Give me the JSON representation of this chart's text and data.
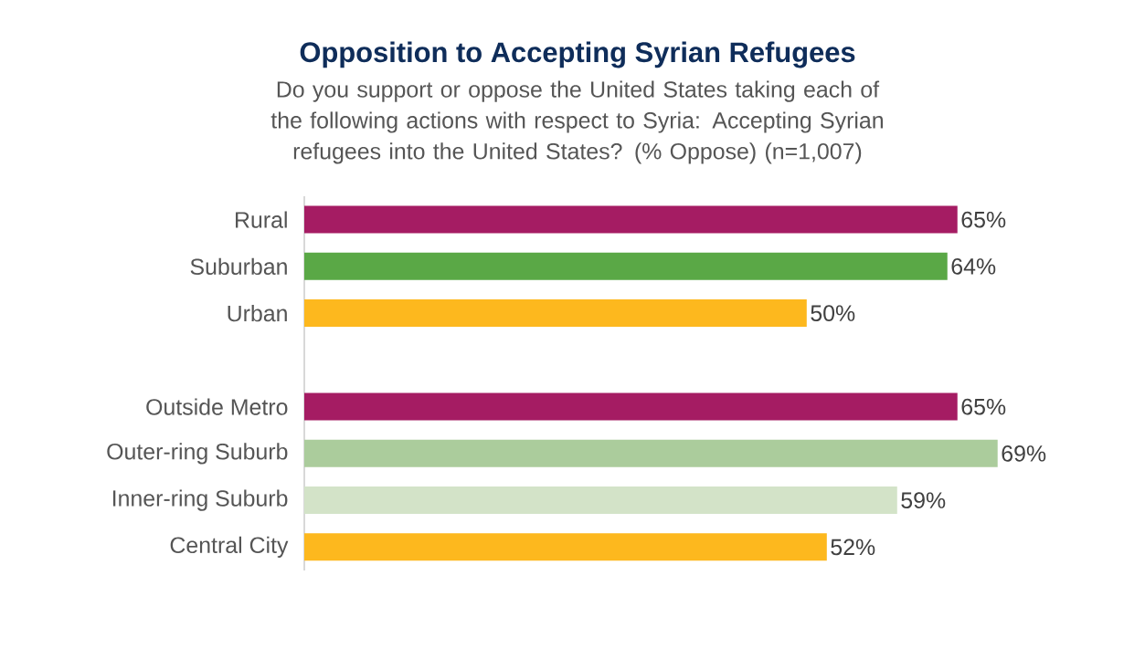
{
  "chart_data": {
    "type": "bar",
    "orientation": "horizontal",
    "title": "Opposition to Accepting Syrian Refugees",
    "subtitle": "Do you support or oppose the United States taking each of the following actions with respect to Syria: Accepting Syrian refugees into the United States? (% Oppose) (n=1,007)",
    "categories": [
      "Rural",
      "Suburban",
      "Urban",
      null,
      "Outside Metro",
      "Outer-ring Suburb",
      "Inner-ring Suburb",
      "Central City"
    ],
    "values": [
      65,
      64,
      50,
      null,
      65,
      69,
      59,
      52
    ],
    "colors": [
      "#a51c63",
      "#5aa846",
      "#fdb81e",
      null,
      "#a51c63",
      "#abcc9c",
      "#d3e3c8",
      "#fdb81e"
    ],
    "value_labels": [
      "65%",
      "64%",
      "50%",
      null,
      "65%",
      "69%",
      "59%",
      "52%"
    ]
  }
}
